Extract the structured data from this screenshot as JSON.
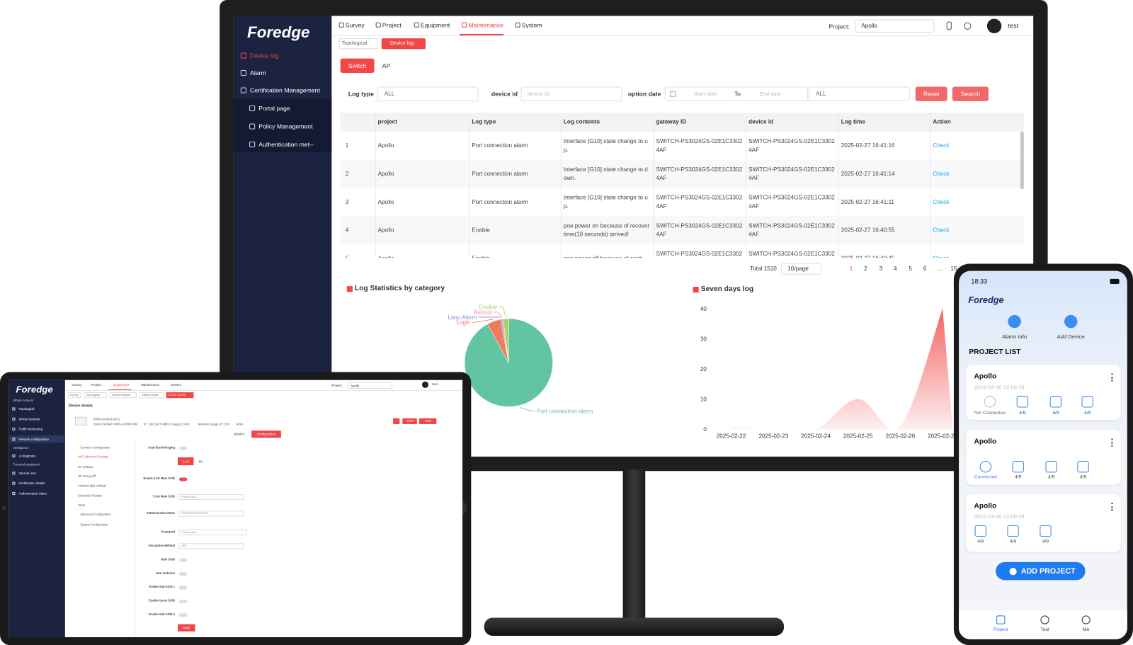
{
  "monitor": {
    "logo": "Foredge",
    "sidebar": [
      "Device log",
      "Alarm",
      "Certification Management",
      "Portal page",
      "Policy Management",
      "Authentication met--"
    ],
    "nav": [
      "Survey",
      "Project",
      "Equipment",
      "Maintenance",
      "System"
    ],
    "project_label": "Project:",
    "project_value": "Apollo",
    "user": "test",
    "tabs": [
      "Topological",
      "Device log"
    ],
    "device_tabs": [
      "Switch",
      "AP"
    ],
    "filters": {
      "log_type_label": "Log type",
      "log_type_value": "ALL",
      "device_id_label": "device id",
      "device_id_placeholder": "device id",
      "date_label": "option date",
      "start_placeholder": "Start date",
      "to": "To",
      "end_placeholder": "End date",
      "type_value": "ALL",
      "reset": "Reset",
      "search": "Search"
    },
    "table": {
      "headers": [
        "project",
        "Log type",
        "Log contents",
        "gateway ID",
        "device id",
        "Log time",
        "Action"
      ],
      "rows": [
        [
          "1",
          "Apollo",
          "Port connection alarm",
          "Interface [G10] state change to up.",
          "SWITCH-PS3024GS-02E1C33024AF",
          "SWITCH-PS3024GS-02E1C33024AF",
          "2025-02-27 16:41:16",
          "Check"
        ],
        [
          "2",
          "Apollo",
          "Port connection alarm",
          "Interface [G10] state change to down.",
          "SWITCH-PS3024GS-02E1C33024AF",
          "SWITCH-PS3024GS-02E1C33024AF",
          "2025-02-27 16:41:14",
          "Check"
        ],
        [
          "3",
          "Apollo",
          "Port connection alarm",
          "Interface [G10] state change to up.",
          "SWITCH-PS3024GS-02E1C33024AF",
          "SWITCH-PS3024GS-02E1C33024AF",
          "2025-02-27 16:41:11",
          "Check"
        ],
        [
          "4",
          "Apollo",
          "Enable",
          "poe power on because of recover time(10 seconds) arrived!",
          "SWITCH-PS3024GS-02E1C33024AF",
          "SWITCH-PS3024GS-02E1C33024AF",
          "2025-02-27 16:40:55",
          "Check"
        ],
        [
          "5",
          "Apollo",
          "Enable",
          "poe power off because of conti",
          "SWITCH-PS3024GS-02E1C33024AF",
          "SWITCH-PS3024GS-02E1C33024AF",
          "2025-02-27 16:40:45",
          "Check"
        ]
      ]
    },
    "pagination": {
      "total": "Total 1510",
      "page_size": "10/page",
      "pages": [
        "1",
        "2",
        "3",
        "4",
        "5",
        "6",
        "...",
        "15"
      ]
    }
  },
  "chart_data": [
    {
      "type": "pie",
      "title": "Log Statistics by category",
      "categories": [
        "Port connection alarm",
        "Login",
        "Loop Alarm",
        "Reboot",
        "Enable"
      ],
      "values": [
        92,
        5,
        0.5,
        0.5,
        2
      ],
      "colors": [
        "#62c4a0",
        "#f07a5c",
        "#7b8fd6",
        "#f08bbf",
        "#a4d65e"
      ]
    },
    {
      "type": "area",
      "title": "Seven days log",
      "categories": [
        "2025-02-22",
        "2025-02-23",
        "2025-02-24",
        "2025-02-25",
        "2025-02-26",
        "2025-02-27"
      ],
      "values": [
        0.5,
        0,
        0,
        10,
        1,
        40
      ],
      "color": "#f25a5a",
      "ylim": [
        0,
        40
      ],
      "yticks": [
        0,
        10,
        20,
        30,
        40
      ],
      "grid": false
    }
  ],
  "tablet": {
    "logo": "Foredge",
    "sidebar": [
      "Whole network",
      "Topological",
      "Whole Network",
      "Traffic Monitoring",
      "Network configuration",
      "Intelligence",
      "AI diagnosis",
      "Terminal equipment",
      "Internet user",
      "Certification details",
      "Authenticated Users"
    ],
    "nav": [
      "Survey",
      "Project",
      "Equipment",
      "Maintenance",
      "System"
    ],
    "project_label": "Project:",
    "project_value": "Apollo",
    "user": "test",
    "tabs": [
      "Survey",
      "Topological",
      "Whole Network",
      "Switch details",
      "Router details"
    ],
    "title": "Device details",
    "device": [
      "FWR-AX3000-SM Z",
      "Device Model: FWR-AX3000-SM",
      "IP: 192.168.9.60",
      "CPU Usage:1.54%",
      "Memory Usage:37.21%",
      "More"
    ],
    "buttons": [
      "switch",
      "Back"
    ],
    "mode_tabs": [
      "Monitor",
      "Configuration"
    ],
    "menu": [
      "Common Configuration",
      "WiFi Advanced Settings",
      "RF Settings",
      "RF Timing Off",
      "Indicator light settings",
      "Scheduled Restart",
      "Mesh",
      "Advanced Configuration",
      "System Configuration"
    ],
    "form": {
      "labels": [
        "Dual-Band Merging",
        "Enable 2.4G Main SSID",
        "* 2.4G Main SSID",
        "Authentication Mode",
        "Password",
        "Encryption Method",
        "Hide SSID",
        "User Isolation",
        "Enable Sub-SSID 1",
        "Enable Guest SSID",
        "Enable Sub-SSID 2"
      ],
      "bands": [
        "2.4G",
        "5G"
      ],
      "ssid_placeholder": "Please input",
      "auth_value": "WPA2PSK/WPA3PSK",
      "password_placeholder": "Please input",
      "encryption_value": "AES",
      "save": "Save"
    }
  },
  "phone": {
    "time": "18:33",
    "logo": "Foredge",
    "actions": [
      "Alarm Info",
      "Add Device"
    ],
    "list_title": "PROJECT LIST",
    "projects": [
      {
        "name": "Apollo",
        "date": "2024-03-30 12:00:29",
        "status": [
          "Not Connected",
          "4/9",
          "4/9",
          "4/9"
        ]
      },
      {
        "name": "Apollo",
        "status": [
          "Connected",
          "4/9",
          "4/9",
          "4/9"
        ]
      },
      {
        "name": "Apollo",
        "date": "2024-03-30 12:00:29",
        "status": [
          "4/9",
          "4/9",
          "4/9"
        ]
      }
    ],
    "add_project": "ADD PROJECT",
    "tabs": [
      "Project",
      "Tool",
      "Me"
    ]
  }
}
